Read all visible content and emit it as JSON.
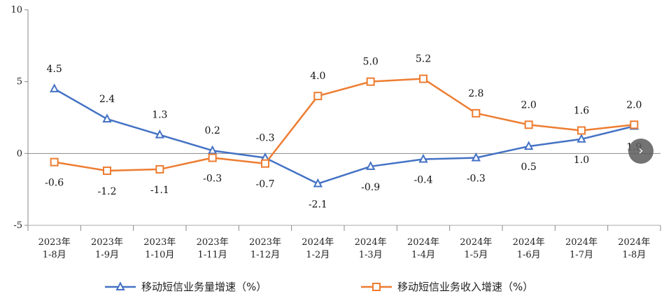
{
  "chart_data": {
    "type": "line",
    "title": "",
    "xlabel": "",
    "ylabel": "",
    "ylim": [
      -5,
      10
    ],
    "yticks": [
      -5,
      0,
      5,
      10
    ],
    "grid": false,
    "legend_position": "bottom",
    "categories": [
      [
        "2023年",
        "1-8月"
      ],
      [
        "2023年",
        "1-9月"
      ],
      [
        "2023年",
        "1-10月"
      ],
      [
        "2023年",
        "1-11月"
      ],
      [
        "2023年",
        "1-12月"
      ],
      [
        "2024年",
        "1-2月"
      ],
      [
        "2024年",
        "1-3月"
      ],
      [
        "2024年",
        "1-4月"
      ],
      [
        "2024年",
        "1-5月"
      ],
      [
        "2024年",
        "1-6月"
      ],
      [
        "2024年",
        "1-7月"
      ],
      [
        "2024年",
        "1-8月"
      ]
    ],
    "series": [
      {
        "name": "移动短信业务量增速（%）",
        "color": "#4472C4",
        "marker": "triangle",
        "values": [
          4.5,
          2.4,
          1.3,
          0.2,
          -0.3,
          -2.1,
          -0.9,
          -0.4,
          -0.3,
          0.5,
          1.0,
          1.9
        ],
        "labels": [
          "4.5",
          "2.4",
          "1.3",
          "0.2",
          "-0.3",
          "-2.1",
          "-0.9",
          "-0.4",
          "-0.3",
          "0.5",
          "1.0",
          "1.9"
        ]
      },
      {
        "name": "移动短信业务收入增速（%）",
        "color": "#ED7D31",
        "marker": "square",
        "values": [
          -0.6,
          -1.2,
          -1.1,
          -0.3,
          -0.7,
          4.0,
          5.0,
          5.2,
          2.8,
          2.0,
          1.6,
          2.0
        ],
        "labels": [
          "-0.6",
          "-1.2",
          "-1.1",
          "-0.3",
          "-0.7",
          "4.0",
          "5.0",
          "5.2",
          "2.8",
          "2.0",
          "1.6",
          "2.0"
        ]
      }
    ]
  },
  "controls": {
    "next_icon": "chevron-right-icon",
    "next_glyph": "›"
  }
}
